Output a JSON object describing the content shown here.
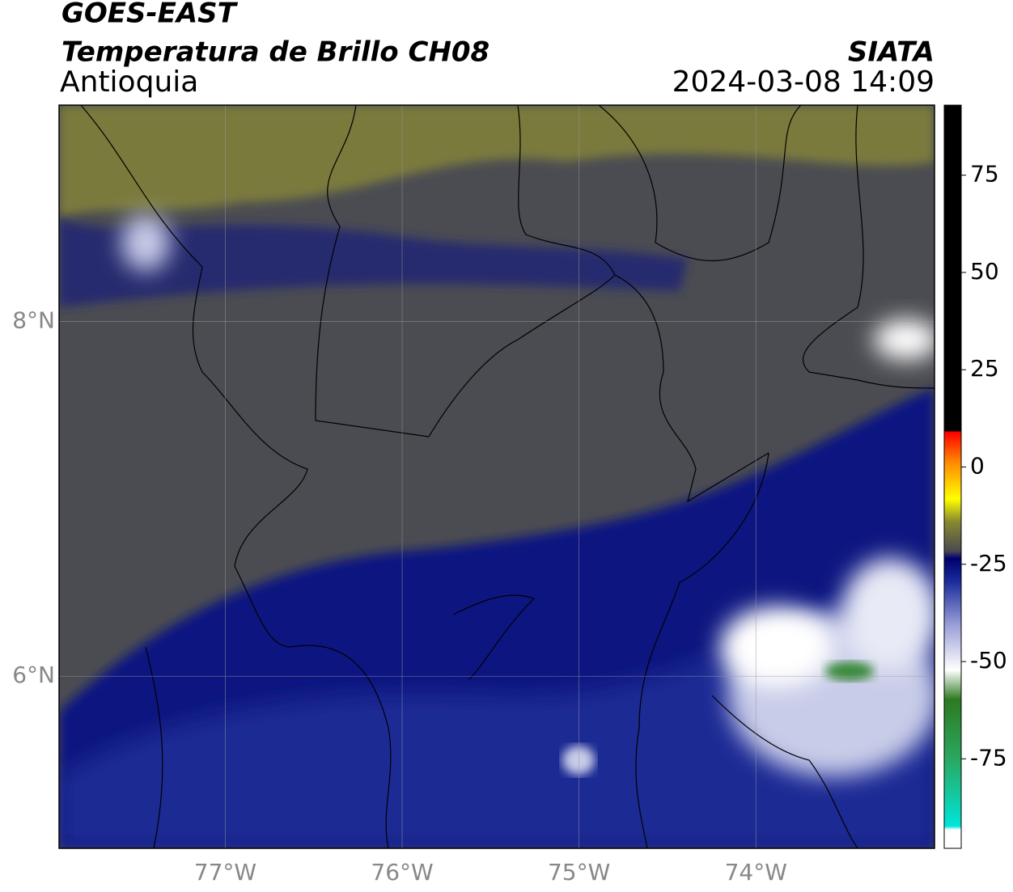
{
  "header": {
    "title": "GOES-EAST",
    "subtitle": "Temperatura de Brillo CH08",
    "region": "Antioquia",
    "source": "SIATA",
    "datetime": "2024-03-08 14:09"
  },
  "map": {
    "xlim": [
      -77.94,
      -72.99
    ],
    "ylim": [
      5.03,
      9.22
    ],
    "xticks": [
      {
        "value": -77,
        "label": "77°W"
      },
      {
        "value": -76,
        "label": "76°W"
      },
      {
        "value": -75,
        "label": "75°W"
      },
      {
        "value": -74,
        "label": "74°W"
      }
    ],
    "yticks": [
      {
        "value": 8,
        "label": "8°N"
      },
      {
        "value": 6,
        "label": "6°N"
      }
    ],
    "grid": true
  },
  "colorbar": {
    "lim": [
      -98,
      93
    ],
    "ticks": [
      75,
      50,
      25,
      0,
      -25,
      -50,
      -75
    ]
  }
}
